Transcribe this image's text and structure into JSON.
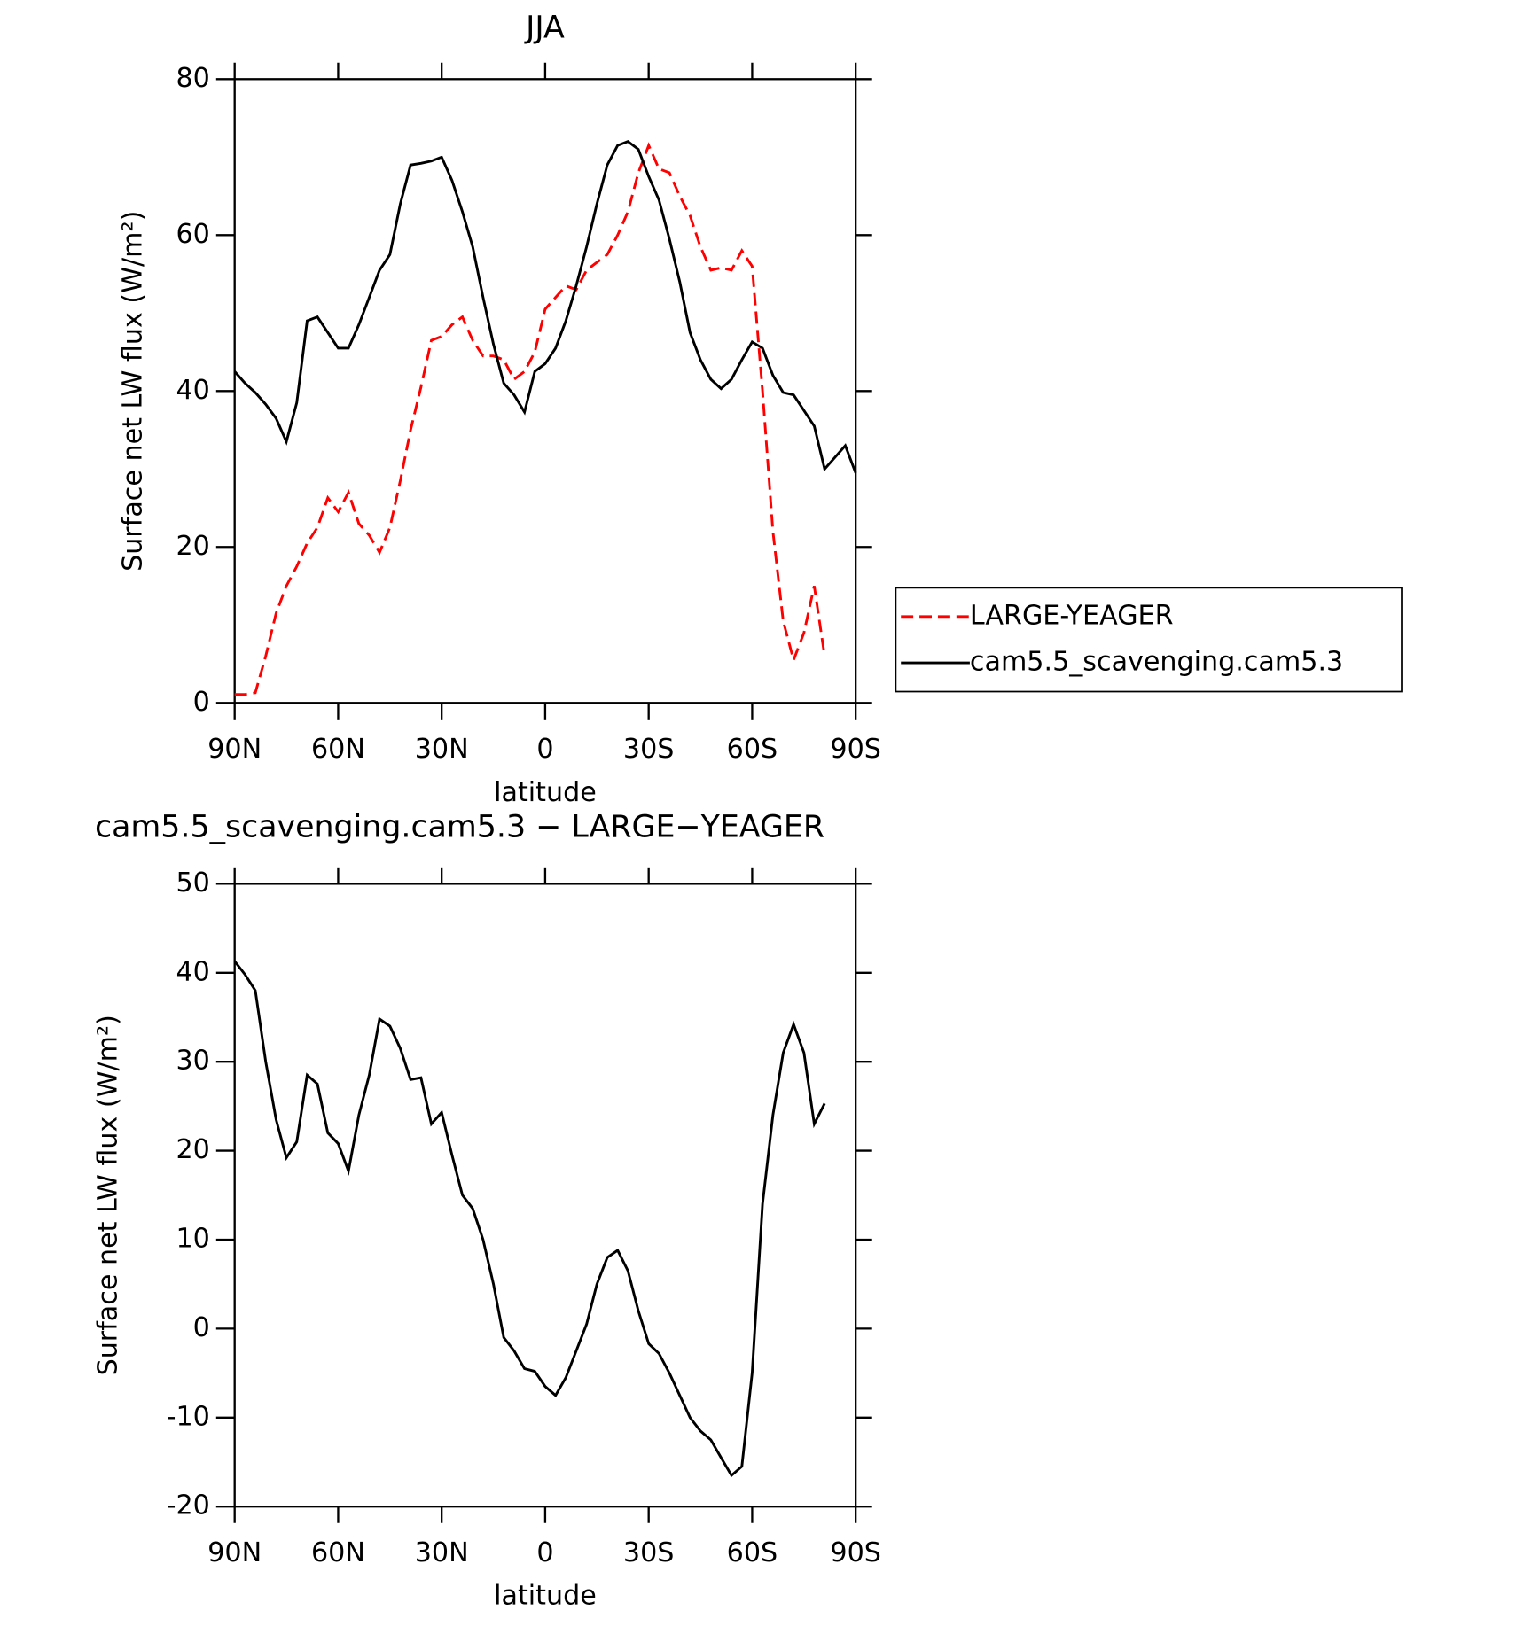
{
  "chart_data": [
    {
      "type": "line",
      "title": "JJA",
      "xlabel": "latitude",
      "ylabel": "Surface net LW flux (W/m²)",
      "x": [
        90,
        87,
        84,
        81,
        78,
        75,
        72,
        69,
        66,
        63,
        60,
        57,
        54,
        51,
        48,
        45,
        42,
        39,
        36,
        33,
        30,
        27,
        24,
        21,
        18,
        15,
        12,
        9,
        6,
        3,
        0,
        -3,
        -6,
        -9,
        -12,
        -15,
        -18,
        -21,
        -24,
        -27,
        -30,
        -33,
        -36,
        -39,
        -42,
        -45,
        -48,
        -51,
        -54,
        -57,
        -60,
        -63,
        -66,
        -69,
        -72,
        -75,
        -78,
        -81,
        -84,
        -87,
        -90
      ],
      "series": [
        {
          "name": "LARGE-YEAGER",
          "color": "#ff0000",
          "dashed": true,
          "values": [
            1.1,
            1.1,
            1.3,
            6,
            11.5,
            15,
            17.5,
            20.5,
            22.5,
            26.3,
            24.5,
            27,
            23,
            21.5,
            19.3,
            22.5,
            28.5,
            35,
            40.5,
            46.5,
            47,
            48.5,
            49.5,
            46.5,
            44.5,
            44.5,
            44,
            41.5,
            42.5,
            45,
            50.5,
            52,
            53.5,
            53,
            55.5,
            56.5,
            57.5,
            60,
            63,
            68,
            71.5,
            68.5,
            68,
            65,
            62.5,
            58.5,
            55.5,
            55.8,
            55.5,
            58,
            56,
            40,
            22,
            10.5,
            5.5,
            9,
            15,
            6,
            null,
            null,
            null
          ]
        },
        {
          "name": "cam5.5_scavenging.cam5.3",
          "color": "#000000",
          "dashed": false,
          "values": [
            42.5,
            41,
            39.8,
            38.3,
            36.5,
            33.5,
            38.5,
            49,
            49.5,
            47.5,
            45.5,
            45.5,
            48.5,
            52,
            55.5,
            57.5,
            64,
            69,
            69.2,
            69.5,
            70,
            67,
            63,
            58.5,
            52,
            46,
            41,
            39.5,
            37.3,
            42.5,
            43.5,
            45.5,
            49,
            53.5,
            58.5,
            64,
            69,
            71.5,
            72,
            71,
            67.5,
            64.5,
            59.5,
            54,
            47.5,
            44,
            41.5,
            40.3,
            41.5,
            44,
            46.3,
            45.5,
            42,
            39.8,
            39.5,
            37.5,
            35.5,
            30,
            31.5,
            33,
            29.5
          ]
        }
      ],
      "xlim": [
        90,
        -90
      ],
      "xticks": [
        {
          "value": 90,
          "label": "90N"
        },
        {
          "value": 60,
          "label": "60N"
        },
        {
          "value": 30,
          "label": "30N"
        },
        0,
        {
          "value": -30,
          "label": "30S"
        },
        {
          "value": -60,
          "label": "60S"
        },
        {
          "value": -90,
          "label": "90S"
        }
      ],
      "ylim": [
        0,
        80
      ],
      "yticks": [
        0,
        20,
        40,
        60,
        80
      ],
      "legend": "right"
    },
    {
      "type": "line",
      "title": "cam5.5_scavenging.cam5.3 − LARGE−YEAGER",
      "xlabel": "latitude",
      "ylabel": "Surface net LW flux (W/m²)",
      "x": [
        90,
        87,
        84,
        81,
        78,
        75,
        72,
        69,
        66,
        63,
        60,
        57,
        54,
        51,
        48,
        45,
        42,
        39,
        36,
        33,
        30,
        27,
        24,
        21,
        18,
        15,
        12,
        9,
        6,
        3,
        0,
        -3,
        -6,
        -9,
        -12,
        -15,
        -18,
        -21,
        -24,
        -27,
        -30,
        -33,
        -36,
        -39,
        -42,
        -45,
        -48,
        -51,
        -54,
        -57,
        -60,
        -63,
        -66,
        -69,
        -72,
        -75,
        -78,
        -81,
        -84,
        -87,
        -90
      ],
      "series": [
        {
          "color": "#000000",
          "dashed": false,
          "values": [
            41.3,
            39.8,
            38,
            30,
            23.5,
            19.2,
            21,
            28.5,
            27.5,
            22,
            20.8,
            17.7,
            24,
            28.5,
            34.8,
            34,
            31.5,
            28,
            28.2,
            23,
            24.3,
            19.5,
            15,
            13.5,
            10,
            5,
            -1,
            -2.5,
            -4.5,
            -4.8,
            -6.5,
            -7.5,
            -5.5,
            -2.5,
            0.5,
            5,
            8,
            8.8,
            6.5,
            2,
            -1.7,
            -2.8,
            -5,
            -7.5,
            -10,
            -11.5,
            -12.5,
            -14.5,
            -16.5,
            -15.5,
            -5,
            14,
            24,
            31,
            34.2,
            31,
            23,
            25.3,
            null,
            null,
            null
          ]
        }
      ],
      "xlim": [
        90,
        -90
      ],
      "xticks": [
        {
          "value": 90,
          "label": "90N"
        },
        {
          "value": 60,
          "label": "60N"
        },
        {
          "value": 30,
          "label": "30N"
        },
        0,
        {
          "value": -30,
          "label": "30S"
        },
        {
          "value": -60,
          "label": "60S"
        },
        {
          "value": -90,
          "label": "90S"
        }
      ],
      "ylim": [
        -20,
        50
      ],
      "yticks": [
        -20,
        -10,
        0,
        10,
        20,
        30,
        40,
        50
      ]
    }
  ]
}
